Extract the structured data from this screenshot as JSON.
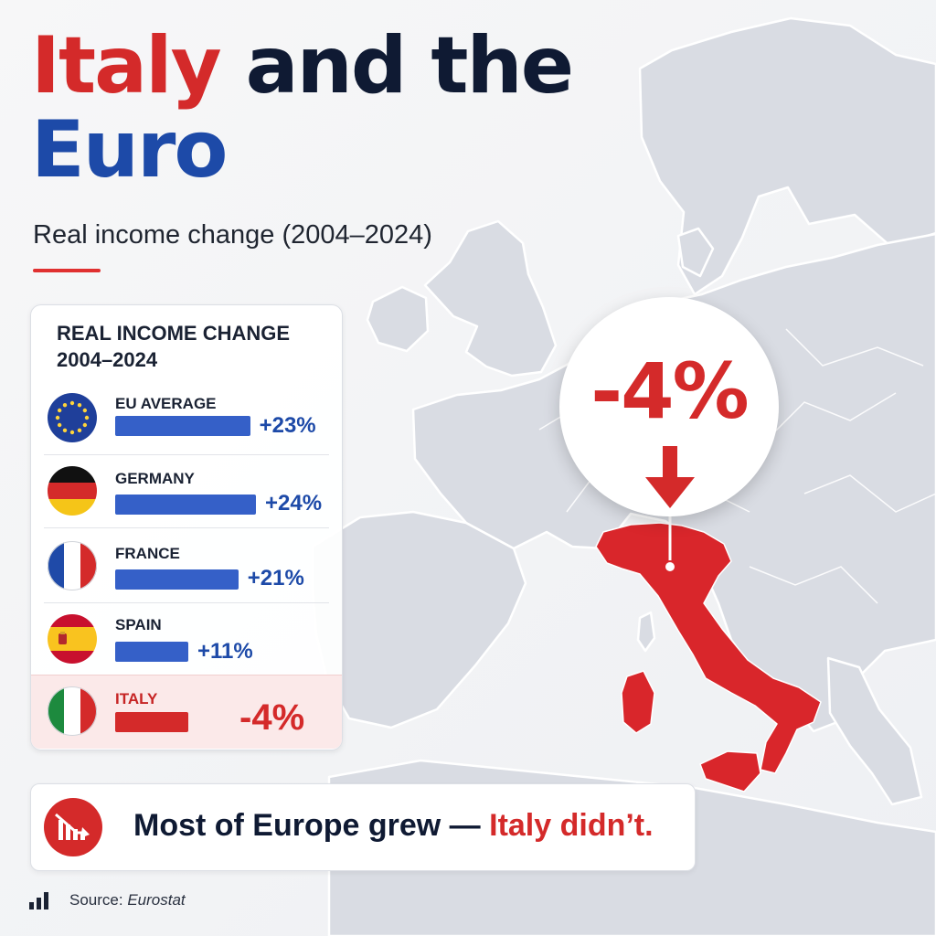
{
  "title": {
    "part1": "Italy",
    "part2": " and the",
    "part3": "Euro"
  },
  "subtitle": "Real income change (2004–2024)",
  "panel": {
    "heading_line1": "REAL INCOME CHANGE",
    "heading_line2": "2004–2024"
  },
  "chart_data": {
    "type": "bar",
    "orientation": "horizontal",
    "title": "REAL INCOME CHANGE 2004–2024",
    "unit": "%",
    "categories": [
      "EU AVERAGE",
      "GERMANY",
      "FRANCE",
      "SPAIN",
      "ITALY"
    ],
    "values": [
      23,
      24,
      21,
      11,
      -4
    ],
    "value_labels": [
      "+23%",
      "+24%",
      "+21%",
      "+11%",
      "-4%"
    ],
    "highlight": "ITALY",
    "colors": {
      "positive": "#3560c8",
      "negative": "#d42a2a"
    },
    "grid": false,
    "legend": "none"
  },
  "callout": {
    "value": "-4%"
  },
  "takeaway": {
    "text_main": "Most of Europe grew — ",
    "text_accent": "Italy didn’t."
  },
  "source": {
    "label": "Source: ",
    "name": "Eurostat"
  },
  "icons": {
    "flags": [
      "eu-flag-icon",
      "germany-flag-icon",
      "france-flag-icon",
      "spain-flag-icon",
      "italy-flag-icon"
    ],
    "takeaway": "declining-chart-icon",
    "source": "bar-chart-icon",
    "callout_arrow": "down-arrow-icon"
  },
  "colors": {
    "accent_red": "#d42a2a",
    "navy": "#0f1a33",
    "blue": "#1d4aa8",
    "bar_blue": "#3560c8"
  }
}
